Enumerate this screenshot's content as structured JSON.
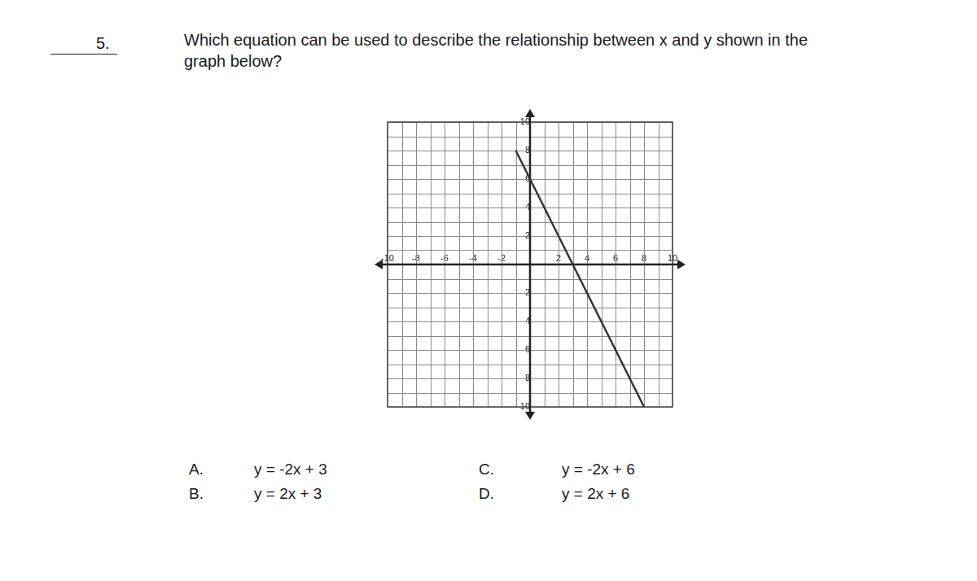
{
  "question": {
    "number": "5.",
    "lines": [
      "Which equation can be used to describe the relationship between x and y shown in the",
      "graph below?"
    ]
  },
  "choices": [
    {
      "letter": "A.",
      "text": "y = -2x + 3"
    },
    {
      "letter": "B.",
      "text": "y = 2x + 3"
    },
    {
      "letter": "C.",
      "text": "y = -2x + 6"
    },
    {
      "letter": "D.",
      "text": "y = 2x + 6"
    }
  ],
  "chart_data": {
    "type": "line",
    "x": [
      -1,
      8
    ],
    "values": [
      8,
      -10
    ],
    "color": "#333333",
    "xlim": [
      -10,
      10
    ],
    "ylim": [
      -10,
      10
    ],
    "xticks": [
      -10,
      -8,
      -6,
      -4,
      -2,
      2,
      4,
      6,
      8,
      10
    ],
    "yticks": [
      -10,
      -8,
      -6,
      -4,
      -2,
      2,
      4,
      6,
      8,
      10
    ],
    "grid": true
  }
}
